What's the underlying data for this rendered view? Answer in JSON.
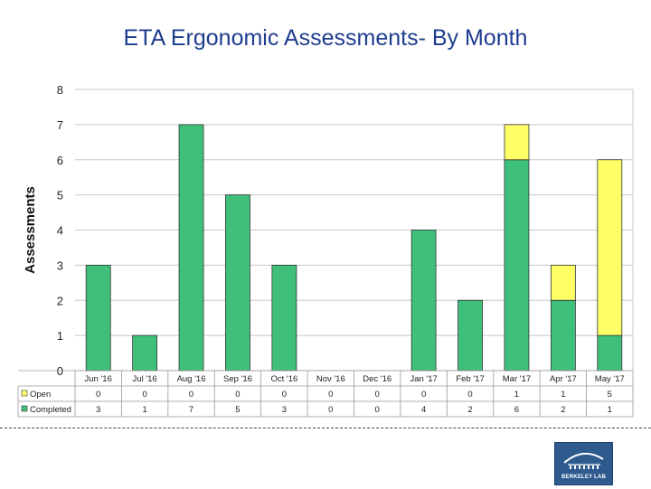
{
  "page": {
    "title": "ETA Ergonomic Assessments- By Month"
  },
  "chart_data": {
    "type": "bar",
    "stacked": true,
    "title": "ETA Ergonomic Assessments- By Month",
    "xlabel": "",
    "ylabel": "Assessments",
    "ylim": [
      0,
      8
    ],
    "yticks": [
      "0",
      "1",
      "2",
      "3",
      "4",
      "5",
      "6",
      "7",
      "8"
    ],
    "grid": true,
    "categories": [
      "Jun '16",
      "Jul '16",
      "Aug '16",
      "Sep '16",
      "Oct '16",
      "Nov '16",
      "Dec '16",
      "Jan '17",
      "Feb '17",
      "Mar '17",
      "Apr '17",
      "May '17"
    ],
    "series": [
      {
        "name": "Completed",
        "color": "#3fc07a",
        "values": [
          3,
          1,
          7,
          5,
          3,
          0,
          0,
          4,
          2,
          6,
          2,
          1
        ]
      },
      {
        "name": "Open",
        "color": "#ffff66",
        "values": [
          0,
          0,
          0,
          0,
          0,
          0,
          0,
          0,
          0,
          1,
          1,
          5
        ]
      }
    ],
    "data_table": {
      "rows": [
        {
          "label": "Open",
          "series": "Open",
          "cells": [
            "0",
            "0",
            "0",
            "0",
            "0",
            "0",
            "0",
            "0",
            "0",
            "1",
            "1",
            "5"
          ]
        },
        {
          "label": "Completed",
          "series": "Completed",
          "cells": [
            "3",
            "1",
            "7",
            "5",
            "3",
            "0",
            "0",
            "4",
            "2",
            "6",
            "2",
            "1"
          ]
        }
      ]
    }
  },
  "logo": {
    "text": "BERKELEY LAB"
  }
}
